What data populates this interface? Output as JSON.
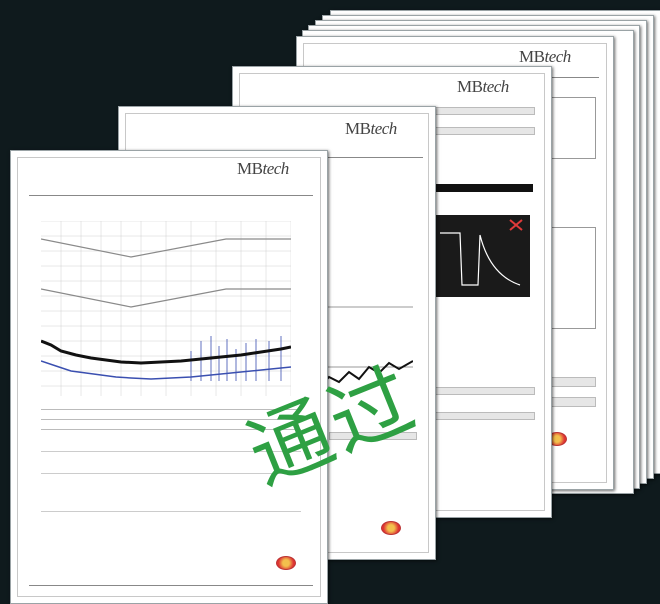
{
  "brand": {
    "logo_prefix": "MB",
    "logo_suffix": "tech"
  },
  "stamp": {
    "text": "通过",
    "color": "#2ea043"
  },
  "colors": {
    "background": "#0f1a1d",
    "paper": "#ffffff",
    "trace_dark": "#111111",
    "trace_blue": "#3a4fb0",
    "limit_line": "#8a8a8a",
    "stamp": "#2ea043"
  }
}
